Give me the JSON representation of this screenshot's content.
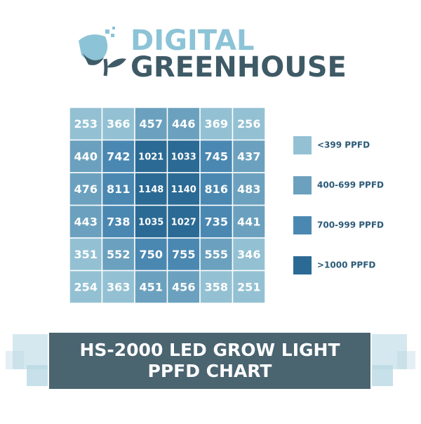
{
  "brand": [
    "DIGITAL",
    "GREENHOUSE"
  ],
  "banner": [
    "HS-2000 LED GROW LIGHT",
    "PPFD CHART"
  ],
  "chart_data": {
    "type": "heatmap",
    "rows": [
      [
        253,
        366,
        457,
        446,
        369,
        256
      ],
      [
        440,
        742,
        1021,
        1033,
        745,
        437
      ],
      [
        476,
        811,
        1148,
        1140,
        816,
        483
      ],
      [
        443,
        738,
        1035,
        1027,
        735,
        441
      ],
      [
        351,
        552,
        750,
        755,
        555,
        346
      ],
      [
        254,
        363,
        451,
        456,
        358,
        251
      ]
    ],
    "legend": [
      {
        "label": "<399 PPFD",
        "color": "#93c1d3"
      },
      {
        "label": "400-699 PPFD",
        "color": "#6ba1be"
      },
      {
        "label": "700-999 PPFD",
        "color": "#4a88b2"
      },
      {
        "label": ">1000 PPFD",
        "color": "#2b6a94"
      }
    ]
  }
}
